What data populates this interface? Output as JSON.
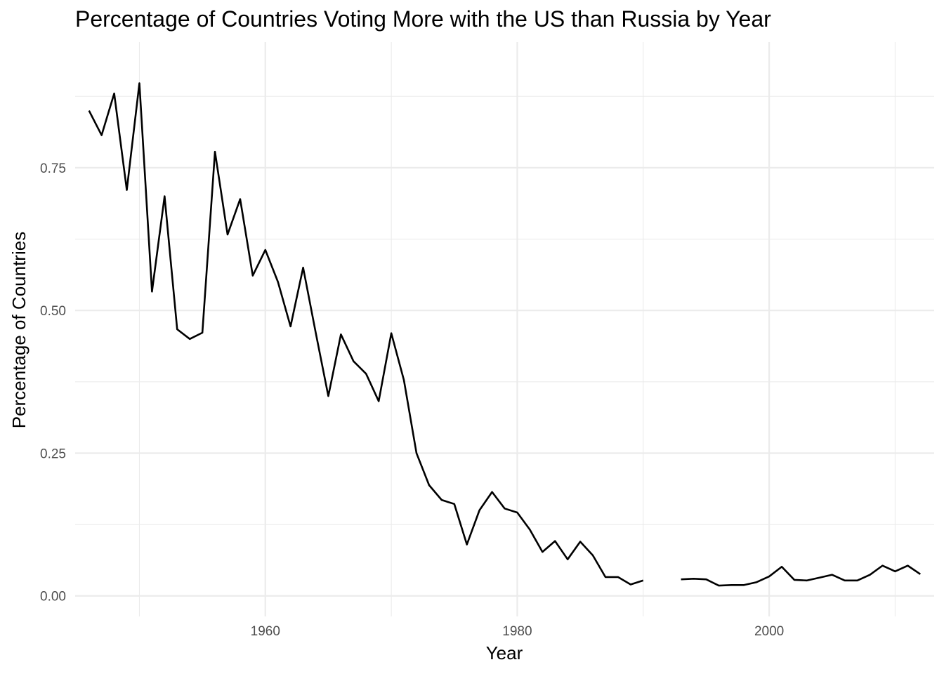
{
  "chart_data": {
    "type": "line",
    "title": "Percentage of Countries Voting More with the US than Russia by Year",
    "xlabel": "Year",
    "ylabel": "Percentage of Countries",
    "xlim": [
      1944.9,
      2013.1
    ],
    "ylim": [
      -0.036,
      0.97
    ],
    "x_ticks": [
      1960,
      1980,
      2000
    ],
    "x_tick_labels": [
      "1960",
      "1980",
      "2000"
    ],
    "x_minor_ticks": [
      1950,
      1970,
      1990,
      2010
    ],
    "y_ticks": [
      0.0,
      0.25,
      0.5,
      0.75
    ],
    "y_tick_labels": [
      "0.00",
      "0.25",
      "0.50",
      "0.75"
    ],
    "y_minor_ticks": [
      0.125,
      0.375,
      0.625,
      0.875
    ],
    "grid": true,
    "legend": "none",
    "series": [
      {
        "color": "#000000",
        "points": [
          [
            1946,
            0.85
          ],
          [
            1947,
            0.807
          ],
          [
            1948,
            0.88
          ],
          [
            1949,
            0.711
          ],
          [
            1950,
            0.898
          ],
          [
            1951,
            0.533
          ],
          [
            1952,
            0.7
          ],
          [
            1953,
            0.467
          ],
          [
            1954,
            0.45
          ],
          [
            1955,
            0.461
          ],
          [
            1956,
            0.778
          ],
          [
            1957,
            0.633
          ],
          [
            1958,
            0.695
          ],
          [
            1959,
            0.561
          ],
          [
            1960,
            0.606
          ],
          [
            1961,
            0.55
          ],
          [
            1962,
            0.472
          ],
          [
            1963,
            0.575
          ],
          [
            1964,
            0.461
          ],
          [
            1965,
            0.35
          ],
          [
            1966,
            0.458
          ],
          [
            1967,
            0.411
          ],
          [
            1968,
            0.389
          ],
          [
            1969,
            0.341
          ],
          [
            1970,
            0.46
          ],
          [
            1971,
            0.378
          ],
          [
            1972,
            0.25
          ],
          [
            1973,
            0.194
          ],
          [
            1974,
            0.168
          ],
          [
            1975,
            0.161
          ],
          [
            1976,
            0.09
          ],
          [
            1977,
            0.15
          ],
          [
            1978,
            0.182
          ],
          [
            1979,
            0.153
          ],
          [
            1980,
            0.146
          ],
          [
            1981,
            0.116
          ],
          [
            1982,
            0.077
          ],
          [
            1983,
            0.096
          ],
          [
            1984,
            0.064
          ],
          [
            1985,
            0.095
          ],
          [
            1986,
            0.071
          ],
          [
            1987,
            0.033
          ],
          [
            1988,
            0.033
          ],
          [
            1989,
            0.02
          ],
          [
            1990,
            0.027
          ],
          [
            1991,
            null
          ],
          [
            1992,
            null
          ],
          [
            1993,
            0.029
          ],
          [
            1994,
            0.03
          ],
          [
            1995,
            0.029
          ],
          [
            1996,
            0.018
          ],
          [
            1997,
            0.019
          ],
          [
            1998,
            0.019
          ],
          [
            1999,
            0.024
          ],
          [
            2000,
            0.034
          ],
          [
            2001,
            0.051
          ],
          [
            2002,
            0.028
          ],
          [
            2003,
            0.027
          ],
          [
            2004,
            0.032
          ],
          [
            2005,
            0.037
          ],
          [
            2006,
            0.027
          ],
          [
            2007,
            0.027
          ],
          [
            2008,
            0.037
          ],
          [
            2009,
            0.053
          ],
          [
            2010,
            0.043
          ],
          [
            2011,
            0.053
          ],
          [
            2012,
            0.038
          ]
        ]
      }
    ]
  }
}
